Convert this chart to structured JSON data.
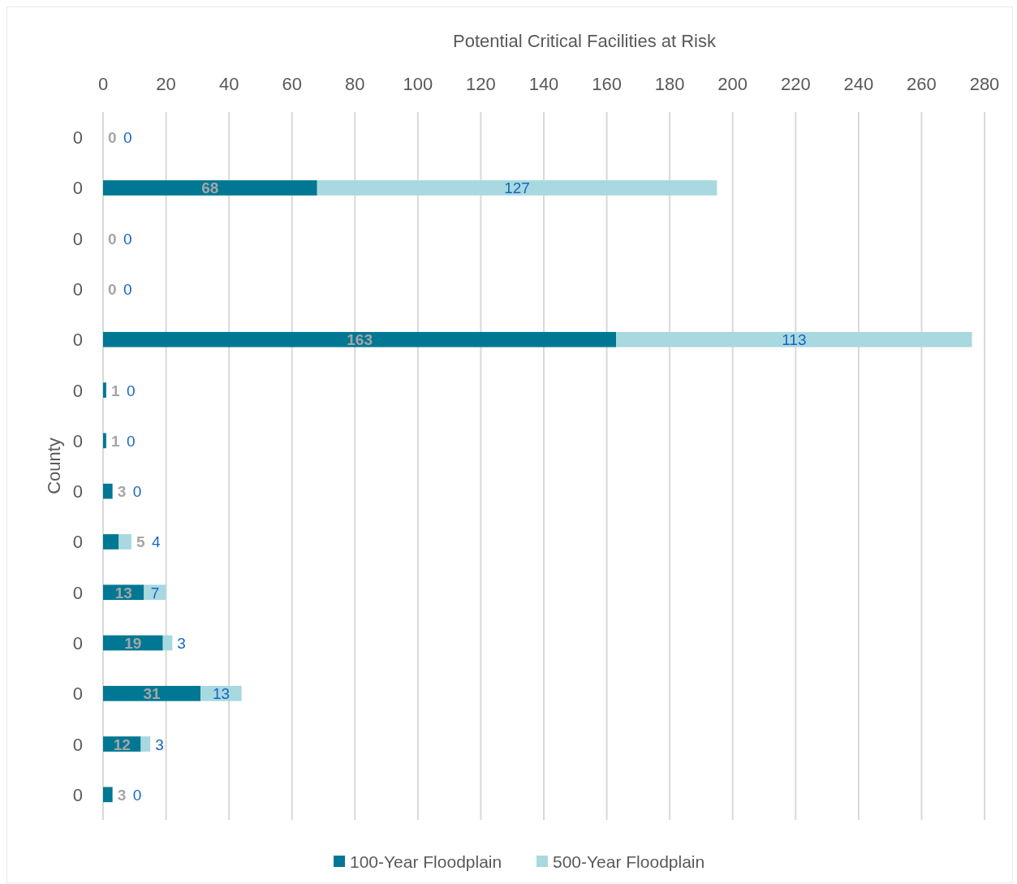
{
  "chart_data": {
    "type": "bar",
    "orientation": "horizontal",
    "stacked": true,
    "title": "Potential Critical Facilities at Risk",
    "ylabel": "County",
    "categories": [
      "0",
      "0",
      "0",
      "0",
      "0",
      "0",
      "0",
      "0",
      "0",
      "0",
      "0",
      "0",
      "0",
      "0"
    ],
    "series": [
      {
        "name": "100-Year Floodplain",
        "color": "#007893",
        "values": [
          0,
          68,
          0,
          0,
          163,
          1,
          1,
          3,
          5,
          13,
          19,
          31,
          12,
          3
        ]
      },
      {
        "name": "500-Year Floodplain",
        "color": "#a8d8e0",
        "values": [
          0,
          127,
          0,
          0,
          113,
          0,
          0,
          0,
          4,
          7,
          3,
          13,
          3,
          0
        ]
      }
    ],
    "xlim": [
      0,
      280
    ],
    "xticks": [
      0,
      20,
      40,
      60,
      80,
      100,
      120,
      140,
      160,
      180,
      200,
      220,
      240,
      260,
      280
    ],
    "grid": "x",
    "legend": "bottom",
    "data_labels": true
  }
}
